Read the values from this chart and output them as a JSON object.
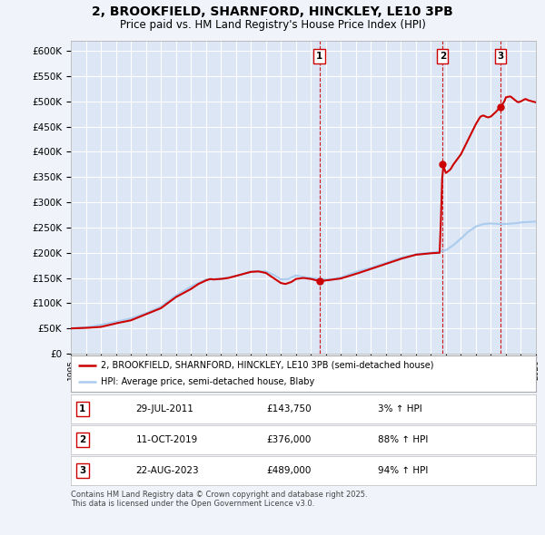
{
  "title_line1": "2, BROOKFIELD, SHARNFORD, HINCKLEY, LE10 3PB",
  "title_line2": "Price paid vs. HM Land Registry's House Price Index (HPI)",
  "ylim": [
    0,
    620000
  ],
  "yticks": [
    0,
    50000,
    100000,
    150000,
    200000,
    250000,
    300000,
    350000,
    400000,
    450000,
    500000,
    550000,
    600000
  ],
  "xlim_start": 1995,
  "xlim_end": 2026,
  "background_color": "#f0f4fa",
  "plot_bg_color": "#dce6f5",
  "grid_color": "#ffffff",
  "sale_color": "#cc0000",
  "hpi_color": "#aaccee",
  "legend_sale_label": "2, BROOKFIELD, SHARNFORD, HINCKLEY, LE10 3PB (semi-detached house)",
  "legend_hpi_label": "HPI: Average price, semi-detached house, Blaby",
  "transactions": [
    {
      "label": "1",
      "date_str": "29-JUL-2011",
      "year": 2011.57,
      "price": 143750,
      "pct": "3%",
      "direction": "↑"
    },
    {
      "label": "2",
      "date_str": "11-OCT-2019",
      "year": 2019.78,
      "price": 376000,
      "pct": "88%",
      "direction": "↑"
    },
    {
      "label": "3",
      "date_str": "22-AUG-2023",
      "year": 2023.64,
      "price": 489000,
      "pct": "94%",
      "direction": "↑"
    }
  ],
  "footer_line1": "Contains HM Land Registry data © Crown copyright and database right 2025.",
  "footer_line2": "This data is licensed under the Open Government Licence v3.0.",
  "dashed_line_color": "#cc0000",
  "table_border_color": "#cc0000",
  "hpi_key_points": [
    [
      1995.0,
      50000
    ],
    [
      1996.0,
      52000
    ],
    [
      1997.0,
      57000
    ],
    [
      1998.0,
      63000
    ],
    [
      1999.0,
      70000
    ],
    [
      2000.0,
      80000
    ],
    [
      2001.0,
      93000
    ],
    [
      2002.0,
      115000
    ],
    [
      2003.0,
      133000
    ],
    [
      2004.0,
      147000
    ],
    [
      2005.0,
      148000
    ],
    [
      2006.0,
      154000
    ],
    [
      2007.0,
      163000
    ],
    [
      2008.0,
      163000
    ],
    [
      2008.6,
      155000
    ],
    [
      2009.0,
      147000
    ],
    [
      2009.5,
      148000
    ],
    [
      2010.0,
      155000
    ],
    [
      2010.5,
      152000
    ],
    [
      2011.0,
      150000
    ],
    [
      2011.5,
      148000
    ],
    [
      2012.0,
      147000
    ],
    [
      2012.5,
      148000
    ],
    [
      2013.0,
      151000
    ],
    [
      2014.0,
      162000
    ],
    [
      2015.0,
      170000
    ],
    [
      2016.0,
      180000
    ],
    [
      2017.0,
      190000
    ],
    [
      2018.0,
      197000
    ],
    [
      2019.0,
      200000
    ],
    [
      2019.5,
      202000
    ],
    [
      2020.0,
      205000
    ],
    [
      2020.5,
      215000
    ],
    [
      2021.0,
      228000
    ],
    [
      2021.5,
      242000
    ],
    [
      2022.0,
      252000
    ],
    [
      2022.5,
      257000
    ],
    [
      2023.0,
      258000
    ],
    [
      2023.5,
      257000
    ],
    [
      2024.0,
      257000
    ],
    [
      2024.5,
      258000
    ],
    [
      2025.0,
      260000
    ],
    [
      2026.0,
      262000
    ]
  ],
  "sale_key_points": [
    [
      1995.0,
      50000
    ],
    [
      1996.0,
      51000
    ],
    [
      1997.0,
      53000
    ],
    [
      1998.0,
      60000
    ],
    [
      1999.0,
      66000
    ],
    [
      2000.0,
      78000
    ],
    [
      2001.0,
      90000
    ],
    [
      2002.0,
      112000
    ],
    [
      2003.0,
      128000
    ],
    [
      2003.5,
      138000
    ],
    [
      2004.0,
      145000
    ],
    [
      2004.3,
      148000
    ],
    [
      2004.5,
      147000
    ],
    [
      2005.0,
      148000
    ],
    [
      2005.5,
      150000
    ],
    [
      2006.0,
      154000
    ],
    [
      2006.5,
      158000
    ],
    [
      2007.0,
      162000
    ],
    [
      2007.5,
      163000
    ],
    [
      2008.0,
      160000
    ],
    [
      2008.5,
      150000
    ],
    [
      2009.0,
      140000
    ],
    [
      2009.3,
      138000
    ],
    [
      2009.7,
      142000
    ],
    [
      2010.0,
      148000
    ],
    [
      2010.5,
      150000
    ],
    [
      2011.0,
      148000
    ],
    [
      2011.57,
      143750
    ],
    [
      2012.0,
      145000
    ],
    [
      2012.5,
      147000
    ],
    [
      2013.0,
      149000
    ],
    [
      2014.0,
      158000
    ],
    [
      2015.0,
      168000
    ],
    [
      2016.0,
      178000
    ],
    [
      2017.0,
      188000
    ],
    [
      2018.0,
      196000
    ],
    [
      2019.0,
      199000
    ],
    [
      2019.6,
      200000
    ],
    [
      2019.78,
      376000
    ],
    [
      2020.0,
      358000
    ],
    [
      2020.3,
      365000
    ],
    [
      2020.5,
      375000
    ],
    [
      2021.0,
      395000
    ],
    [
      2021.5,
      425000
    ],
    [
      2022.0,
      455000
    ],
    [
      2022.3,
      470000
    ],
    [
      2022.5,
      472000
    ],
    [
      2022.8,
      468000
    ],
    [
      2023.0,
      470000
    ],
    [
      2023.3,
      478000
    ],
    [
      2023.64,
      489000
    ],
    [
      2023.9,
      500000
    ],
    [
      2024.0,
      508000
    ],
    [
      2024.3,
      510000
    ],
    [
      2024.5,
      505000
    ],
    [
      2024.8,
      498000
    ],
    [
      2025.0,
      500000
    ],
    [
      2025.3,
      505000
    ],
    [
      2025.5,
      502000
    ],
    [
      2026.0,
      498000
    ]
  ]
}
